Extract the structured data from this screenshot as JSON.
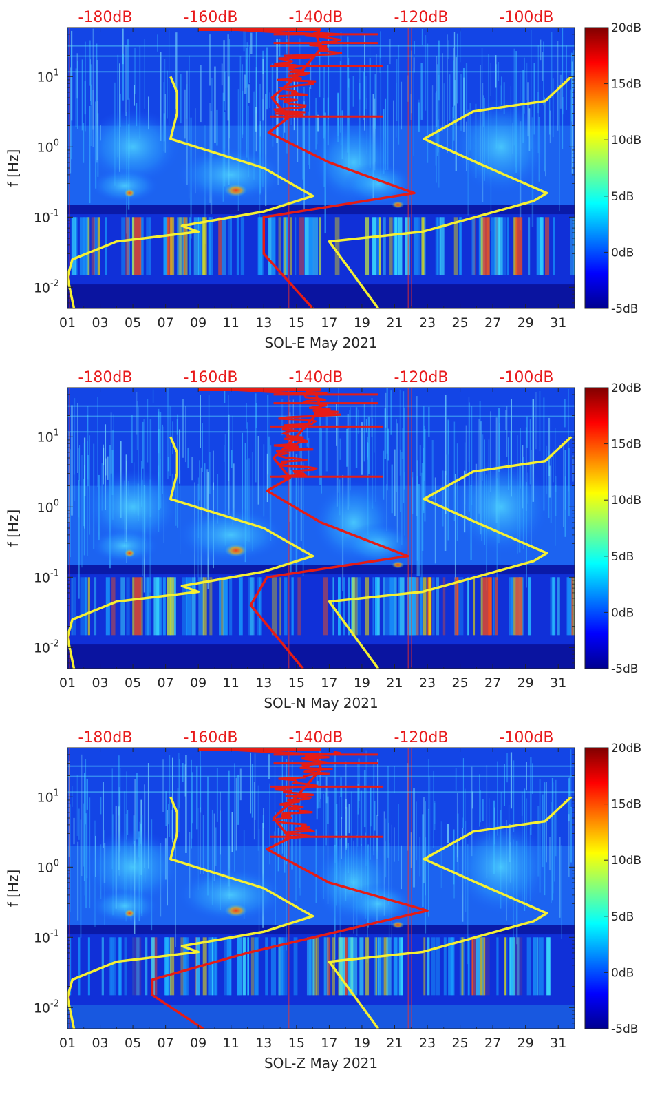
{
  "colors": {
    "yellow_curve": "#f5f032",
    "red_curve": "#e51c16",
    "top_label": "#e8191a",
    "colormap": "jet"
  },
  "chart_data": [
    {
      "type": "heatmap",
      "title": "",
      "xlabel": "SOL-E May 2021",
      "ylabel": "f [Hz]",
      "x_ticks": [
        "01",
        "03",
        "05",
        "07",
        "09",
        "11",
        "13",
        "15",
        "17",
        "19",
        "21",
        "23",
        "25",
        "27",
        "29",
        "31"
      ],
      "y_ticks": [
        "10^-2",
        "10^-1",
        "10^0",
        "10^1"
      ],
      "y_scale": "log",
      "ylim": [
        0.005,
        50
      ],
      "xlim": [
        1,
        32
      ],
      "top_axis_ticks": [
        "-180dB",
        "-160dB",
        "-140dB",
        "-120dB",
        "-100dB"
      ],
      "colorbar": {
        "ticks": [
          "-5dB",
          "0dB",
          "5dB",
          "10dB",
          "15dB",
          "20dB"
        ],
        "range": [
          -5,
          20
        ]
      },
      "series": [
        {
          "color": "yellow",
          "points": [
            [
              1.4,
              0.005
            ],
            [
              1,
              0.014
            ],
            [
              1.3,
              0.025
            ],
            [
              4,
              0.045
            ],
            [
              9,
              0.062
            ],
            [
              8,
              0.075
            ],
            [
              13,
              0.12
            ],
            [
              16,
              0.2
            ],
            [
              13,
              0.5
            ],
            [
              7.3,
              1.3
            ],
            [
              7.7,
              3
            ],
            [
              7.7,
              6
            ],
            [
              7.3,
              10
            ]
          ]
        },
        {
          "color": "yellow",
          "points": [
            [
              20,
              0.005
            ],
            [
              17,
              0.045
            ],
            [
              22.7,
              0.062
            ],
            [
              29.5,
              0.17
            ],
            [
              30.3,
              0.22
            ],
            [
              26,
              0.6
            ],
            [
              22.8,
              1.3
            ],
            [
              25.8,
              3.2
            ],
            [
              30.2,
              4.5
            ],
            [
              31.8,
              10
            ]
          ]
        },
        {
          "color": "red",
          "points": [
            [
              16,
              0.005
            ],
            [
              13,
              0.03
            ],
            [
              13,
              0.1
            ],
            [
              22.2,
              0.22
            ],
            [
              17,
              0.6
            ],
            [
              13.3,
              1.6
            ],
            [
              14.5,
              2.6
            ],
            [
              13.5,
              5
            ],
            [
              15,
              10
            ],
            [
              16.5,
              25
            ],
            [
              16.2,
              40
            ],
            [
              9,
              50
            ]
          ]
        }
      ]
    },
    {
      "type": "heatmap",
      "title": "",
      "xlabel": "SOL-N May 2021",
      "ylabel": "f [Hz]",
      "x_ticks": [
        "01",
        "03",
        "05",
        "07",
        "09",
        "11",
        "13",
        "15",
        "17",
        "19",
        "21",
        "23",
        "25",
        "27",
        "29",
        "31"
      ],
      "y_ticks": [
        "10^-2",
        "10^-1",
        "10^0",
        "10^1"
      ],
      "y_scale": "log",
      "ylim": [
        0.005,
        50
      ],
      "xlim": [
        1,
        32
      ],
      "top_axis_ticks": [
        "-180dB",
        "-160dB",
        "-140dB",
        "-120dB",
        "-100dB"
      ],
      "colorbar": {
        "ticks": [
          "-5dB",
          "0dB",
          "5dB",
          "10dB",
          "15dB",
          "20dB"
        ],
        "range": [
          -5,
          20
        ]
      },
      "series": [
        {
          "color": "yellow",
          "points": [
            [
              1.4,
              0.005
            ],
            [
              1,
              0.014
            ],
            [
              1.3,
              0.025
            ],
            [
              4,
              0.045
            ],
            [
              9,
              0.062
            ],
            [
              8,
              0.075
            ],
            [
              13,
              0.12
            ],
            [
              16,
              0.2
            ],
            [
              13,
              0.5
            ],
            [
              7.3,
              1.3
            ],
            [
              7.7,
              3
            ],
            [
              7.7,
              6
            ],
            [
              7.3,
              10
            ]
          ]
        },
        {
          "color": "yellow",
          "points": [
            [
              20,
              0.005
            ],
            [
              17,
              0.045
            ],
            [
              22.7,
              0.062
            ],
            [
              29.5,
              0.17
            ],
            [
              30.3,
              0.22
            ],
            [
              26,
              0.6
            ],
            [
              22.8,
              1.3
            ],
            [
              25.8,
              3.2
            ],
            [
              30.2,
              4.5
            ],
            [
              31.8,
              10
            ]
          ]
        },
        {
          "color": "red",
          "points": [
            [
              15.4,
              0.005
            ],
            [
              12.2,
              0.04
            ],
            [
              13.2,
              0.1
            ],
            [
              21.8,
              0.2
            ],
            [
              16.5,
              0.6
            ],
            [
              13.2,
              1.7
            ],
            [
              14.6,
              2.6
            ],
            [
              13.6,
              5
            ],
            [
              15,
              10
            ],
            [
              16.5,
              25
            ],
            [
              16.2,
              40
            ],
            [
              9,
              50
            ]
          ]
        }
      ]
    },
    {
      "type": "heatmap",
      "title": "",
      "xlabel": "SOL-Z May 2021",
      "ylabel": "f [Hz]",
      "x_ticks": [
        "01",
        "03",
        "05",
        "07",
        "09",
        "11",
        "13",
        "15",
        "17",
        "19",
        "21",
        "23",
        "25",
        "27",
        "29",
        "31"
      ],
      "y_ticks": [
        "10^-2",
        "10^-1",
        "10^0",
        "10^1"
      ],
      "y_scale": "log",
      "ylim": [
        0.005,
        50
      ],
      "xlim": [
        1,
        32
      ],
      "top_axis_ticks": [
        "-180dB",
        "-160dB",
        "-140dB",
        "-120dB",
        "-100dB"
      ],
      "colorbar": {
        "ticks": [
          "-5dB",
          "0dB",
          "5dB",
          "10dB",
          "15dB",
          "20dB"
        ],
        "range": [
          -5,
          20
        ]
      },
      "series": [
        {
          "color": "yellow",
          "points": [
            [
              1.4,
              0.005
            ],
            [
              1,
              0.014
            ],
            [
              1.3,
              0.025
            ],
            [
              4,
              0.045
            ],
            [
              9,
              0.062
            ],
            [
              8,
              0.075
            ],
            [
              13,
              0.12
            ],
            [
              16,
              0.2
            ],
            [
              13,
              0.5
            ],
            [
              7.3,
              1.3
            ],
            [
              7.7,
              3
            ],
            [
              7.7,
              6
            ],
            [
              7.3,
              10
            ]
          ]
        },
        {
          "color": "yellow",
          "points": [
            [
              20,
              0.005
            ],
            [
              17,
              0.045
            ],
            [
              22.7,
              0.062
            ],
            [
              29.5,
              0.17
            ],
            [
              30.3,
              0.22
            ],
            [
              26,
              0.6
            ],
            [
              22.8,
              1.3
            ],
            [
              25.8,
              3.2
            ],
            [
              30.2,
              4.5
            ],
            [
              31.8,
              10
            ]
          ]
        },
        {
          "color": "red",
          "points": [
            [
              9.3,
              0.005
            ],
            [
              6.2,
              0.015
            ],
            [
              6.2,
              0.025
            ],
            [
              12,
              0.06
            ],
            [
              23,
              0.24
            ],
            [
              17,
              0.6
            ],
            [
              13.2,
              1.8
            ],
            [
              14.6,
              2.6
            ],
            [
              13.6,
              5
            ],
            [
              15,
              10
            ],
            [
              16.5,
              25
            ],
            [
              16.2,
              40
            ],
            [
              9,
              50
            ]
          ]
        }
      ]
    }
  ]
}
